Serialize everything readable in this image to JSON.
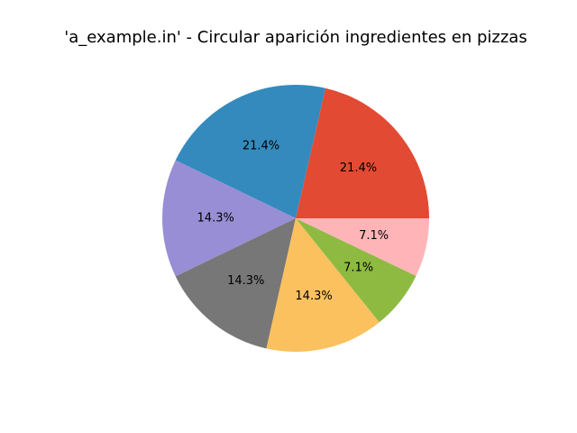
{
  "chart_data": {
    "type": "pie",
    "title": "'a_example.in' - Circular aparición ingredientes en pizzas",
    "values": [
      21.4,
      21.4,
      14.3,
      14.3,
      14.3,
      7.1,
      7.1
    ],
    "labels": [
      "21.4%",
      "21.4%",
      "14.3%",
      "14.3%",
      "14.3%",
      "7.1%",
      "7.1%"
    ],
    "colors": [
      "#e24a33",
      "#348abd",
      "#988ed5",
      "#777777",
      "#fbc15e",
      "#8eba42",
      "#ffb5b8"
    ],
    "start_angle": 0,
    "direction": "counterclockwise",
    "legend": "none"
  }
}
